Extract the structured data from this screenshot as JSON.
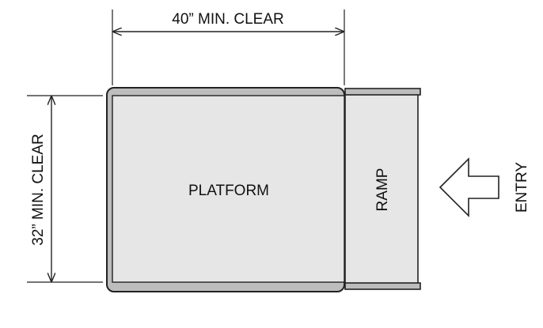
{
  "labels": {
    "width_dimension": "40” MIN. CLEAR",
    "depth_dimension": "32” MIN. CLEAR",
    "platform": "PLATFORM",
    "ramp": "RAMP",
    "entry": "ENTRY"
  },
  "colors": {
    "platform_fill": "#e6e6e6",
    "ramp_fill": "#e6e6e6",
    "edge_fill": "#bdbdbd",
    "stroke": "#222222",
    "text": "#111111"
  }
}
